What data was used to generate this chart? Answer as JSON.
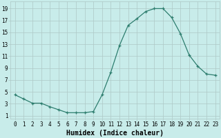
{
  "xlabel": "Humidex (Indice chaleur)",
  "x": [
    0,
    1,
    2,
    3,
    4,
    5,
    6,
    7,
    8,
    9,
    10,
    11,
    12,
    13,
    14,
    15,
    16,
    17,
    18,
    19,
    20,
    21,
    22,
    23
  ],
  "y": [
    4.5,
    3.8,
    3.1,
    3.1,
    2.5,
    2.0,
    1.5,
    1.5,
    1.5,
    1.7,
    4.5,
    8.3,
    12.8,
    16.2,
    17.3,
    18.5,
    19.0,
    19.0,
    17.5,
    14.8,
    11.2,
    9.3,
    8.0,
    7.8
  ],
  "line_color": "#2d7d6e",
  "marker": "+",
  "bg_color": "#c8ecea",
  "grid_color": "#aec8c6",
  "yticks": [
    1,
    3,
    5,
    7,
    9,
    11,
    13,
    15,
    17,
    19
  ],
  "xticks": [
    0,
    1,
    2,
    3,
    4,
    5,
    6,
    7,
    8,
    9,
    10,
    11,
    12,
    13,
    14,
    15,
    16,
    17,
    18,
    19,
    20,
    21,
    22,
    23
  ],
  "ylim": [
    0.5,
    20.2
  ],
  "xlim": [
    -0.5,
    23.5
  ],
  "tick_fontsize": 5.5,
  "label_fontsize": 7.0
}
